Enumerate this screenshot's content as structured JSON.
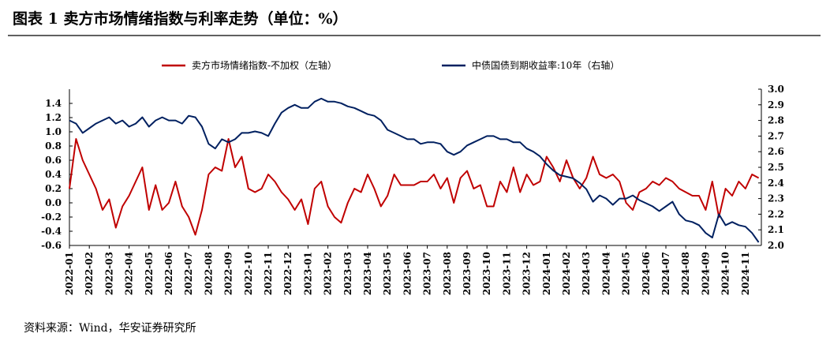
{
  "chart_data": {
    "type": "line",
    "title": "图表 1 卖方市场情绪指数与利率走势（单位：%）",
    "source": "资料来源：Wind，华安证券研究所",
    "categories": [
      "2022-01",
      null,
      null,
      "2022-02",
      null,
      null,
      "2022-03",
      null,
      null,
      "2022-04",
      null,
      null,
      "2022-05",
      null,
      null,
      "2022-06",
      null,
      null,
      "2022-07",
      null,
      null,
      "2022-08",
      null,
      null,
      "2022-09",
      null,
      null,
      "2022-10",
      null,
      null,
      "2022-11",
      null,
      null,
      "2022-12",
      null,
      null,
      "2023-01",
      null,
      null,
      "2023-02",
      null,
      null,
      "2023-03",
      null,
      null,
      "2023-04",
      null,
      null,
      "2023-05",
      null,
      null,
      "2023-06",
      null,
      null,
      "2023-07",
      null,
      null,
      "2023-08",
      null,
      null,
      "2023-09",
      null,
      null,
      "2023-10",
      null,
      null,
      "2023-11",
      null,
      null,
      "2023-12",
      null,
      null,
      "2024-01",
      null,
      null,
      "2024-02",
      null,
      null,
      "2024-03",
      null,
      null,
      "2024-04",
      null,
      null,
      "2024-05",
      null,
      null,
      "2024-06",
      null,
      null,
      "2024-07",
      null,
      null,
      "2024-08",
      null,
      null,
      "2024-09",
      null,
      null,
      "2024-10",
      null,
      null,
      "2024-11",
      null,
      null
    ],
    "series": [
      {
        "name": "卖方市场情绪指数-不加权（左轴）",
        "color": "#c00000",
        "values": [
          0.2,
          0.9,
          0.6,
          0.4,
          0.2,
          -0.1,
          0.05,
          -0.35,
          -0.05,
          0.1,
          0.3,
          0.5,
          -0.1,
          0.25,
          -0.1,
          0.0,
          0.3,
          -0.05,
          -0.2,
          -0.45,
          -0.1,
          0.4,
          0.5,
          0.45,
          0.9,
          0.5,
          0.65,
          0.2,
          0.15,
          0.2,
          0.4,
          0.3,
          0.15,
          0.05,
          -0.1,
          0.05,
          -0.3,
          0.2,
          0.3,
          -0.05,
          -0.2,
          -0.28,
          0.0,
          0.2,
          0.15,
          0.4,
          0.2,
          -0.05,
          0.1,
          0.4,
          0.25,
          0.25,
          0.25,
          0.3,
          0.3,
          0.4,
          0.2,
          0.35,
          0.0,
          0.35,
          0.45,
          0.2,
          0.25,
          -0.05,
          -0.05,
          0.3,
          0.15,
          0.5,
          0.15,
          0.4,
          0.25,
          0.3,
          0.65,
          0.5,
          0.3,
          0.6,
          0.35,
          0.2,
          0.35,
          0.65,
          0.4,
          0.35,
          0.4,
          0.3,
          0.0,
          -0.1,
          0.15,
          0.2,
          0.3,
          0.25,
          0.35,
          0.3,
          0.2,
          0.15,
          0.1,
          0.1,
          -0.1,
          0.3,
          -0.2,
          0.2,
          0.1,
          0.3,
          0.2,
          0.4,
          0.35
        ]
      },
      {
        "name": "中债国债到期收益率:10年（右轴）",
        "color": "#002060",
        "axis": "y2",
        "values": [
          2.8,
          2.78,
          2.72,
          2.75,
          2.78,
          2.8,
          2.82,
          2.78,
          2.8,
          2.76,
          2.78,
          2.82,
          2.76,
          2.8,
          2.82,
          2.8,
          2.8,
          2.78,
          2.83,
          2.82,
          2.76,
          2.65,
          2.62,
          2.68,
          2.66,
          2.68,
          2.72,
          2.72,
          2.73,
          2.72,
          2.7,
          2.78,
          2.85,
          2.88,
          2.9,
          2.88,
          2.88,
          2.92,
          2.94,
          2.92,
          2.92,
          2.91,
          2.89,
          2.88,
          2.86,
          2.84,
          2.83,
          2.8,
          2.74,
          2.72,
          2.7,
          2.68,
          2.68,
          2.65,
          2.66,
          2.66,
          2.65,
          2.6,
          2.58,
          2.6,
          2.64,
          2.66,
          2.68,
          2.7,
          2.7,
          2.68,
          2.68,
          2.66,
          2.66,
          2.62,
          2.6,
          2.57,
          2.52,
          2.48,
          2.45,
          2.44,
          2.43,
          2.4,
          2.36,
          2.28,
          2.32,
          2.3,
          2.26,
          2.3,
          2.3,
          2.32,
          2.29,
          2.27,
          2.25,
          2.22,
          2.25,
          2.28,
          2.2,
          2.16,
          2.15,
          2.13,
          2.08,
          2.05,
          2.2,
          2.13,
          2.15,
          2.13,
          2.12,
          2.08,
          2.02
        ]
      }
    ],
    "ylim": [
      -0.6,
      1.6
    ],
    "yticks": [
      -0.6,
      -0.4,
      -0.2,
      {
        "value": 0,
        "label": "0.0"
      },
      0.2,
      0.4,
      0.6,
      0.8,
      {
        "value": 1,
        "label": "1.0"
      },
      1.2,
      1.4
    ],
    "y2lim": [
      2.0,
      3.0
    ],
    "y2ticks": [
      {
        "value": 2,
        "label": "2.0"
      },
      2.1,
      2.2,
      2.3,
      2.4,
      2.5,
      2.6,
      2.7,
      2.8,
      2.9,
      {
        "value": 3,
        "label": "3.0"
      }
    ],
    "grid": false
  }
}
